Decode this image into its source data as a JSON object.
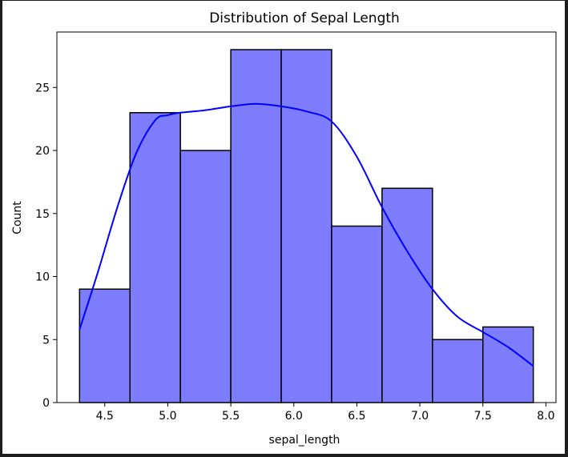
{
  "chart_data": {
    "type": "bar",
    "title": "Distribution of Sepal Length",
    "xlabel": "sepal_length",
    "ylabel": "Count",
    "xlim": [
      4.12,
      8.08
    ],
    "ylim": [
      0,
      29.4
    ],
    "xticks": [
      4.5,
      5.0,
      5.5,
      6.0,
      6.5,
      7.0,
      7.5,
      8.0
    ],
    "xtick_labels": [
      "4.5",
      "5.0",
      "5.5",
      "6.0",
      "6.5",
      "7.0",
      "7.5",
      "8.0"
    ],
    "yticks": [
      0,
      5,
      10,
      15,
      20,
      25
    ],
    "ytick_labels": [
      "0",
      "5",
      "10",
      "15",
      "20",
      "25"
    ],
    "bins": [
      {
        "start": 4.3,
        "end": 4.7,
        "count": 9
      },
      {
        "start": 4.7,
        "end": 5.1,
        "count": 23
      },
      {
        "start": 5.1,
        "end": 5.5,
        "count": 20
      },
      {
        "start": 5.5,
        "end": 5.9,
        "count": 28
      },
      {
        "start": 5.9,
        "end": 6.3,
        "count": 28
      },
      {
        "start": 6.3,
        "end": 6.7,
        "count": 14
      },
      {
        "start": 6.7,
        "end": 7.1,
        "count": 17
      },
      {
        "start": 7.1,
        "end": 7.5,
        "count": 5
      },
      {
        "start": 7.5,
        "end": 7.9,
        "count": 6
      }
    ],
    "kde": {
      "x": [
        4.3,
        4.45,
        4.6,
        4.75,
        4.9,
        5.0,
        5.1,
        5.3,
        5.5,
        5.7,
        5.9,
        6.1,
        6.3,
        6.5,
        6.7,
        6.9,
        7.1,
        7.3,
        7.5,
        7.7,
        7.9
      ],
      "y": [
        5.8,
        10.5,
        15.5,
        19.8,
        22.4,
        22.8,
        23.0,
        23.2,
        23.5,
        23.7,
        23.5,
        23.1,
        22.3,
        19.5,
        15.5,
        12.0,
        9.0,
        6.8,
        5.6,
        4.4,
        2.9
      ]
    },
    "grid": false,
    "colors": {
      "bar_fill": "#7c7cfc",
      "bar_edge": "#000000",
      "kde_line": "#0000ff",
      "background": "#ffffff"
    }
  }
}
